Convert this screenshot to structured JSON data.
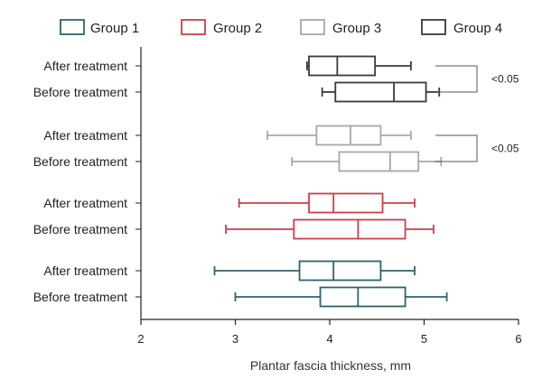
{
  "chart_data": {
    "type": "boxplot",
    "orientation": "horizontal",
    "xlabel": "Plantar fascia thickness, mm",
    "xlim": [
      2,
      6
    ],
    "xticks": [
      2,
      3,
      4,
      5,
      6
    ],
    "legend_position": "top",
    "grid": false,
    "legend": [
      {
        "name": "Group 1",
        "color": "#2e6468"
      },
      {
        "name": "Group 2",
        "color": "#d23c48"
      },
      {
        "name": "Group 3",
        "color": "#a8a8a8"
      },
      {
        "name": "Group 4",
        "color": "#3a3a3a"
      }
    ],
    "rows": [
      {
        "label": "After treatment",
        "group": "Group 4",
        "color": "#3a3a3a",
        "min": 3.76,
        "q1": 3.78,
        "median": 4.08,
        "q3": 4.48,
        "max": 4.86
      },
      {
        "label": "Before treatment",
        "group": "Group 4",
        "color": "#3a3a3a",
        "min": 3.92,
        "q1": 4.06,
        "median": 4.68,
        "q3": 5.02,
        "max": 5.16
      },
      {
        "label": "After treatment",
        "group": "Group 3",
        "color": "#a8a8a8",
        "min": 3.34,
        "q1": 3.86,
        "median": 4.22,
        "q3": 4.54,
        "max": 4.86
      },
      {
        "label": "Before treatment",
        "group": "Group 3",
        "color": "#a8a8a8",
        "min": 3.6,
        "q1": 4.1,
        "median": 4.64,
        "q3": 4.94,
        "max": 5.18
      },
      {
        "label": "After treatment",
        "group": "Group 2",
        "color": "#d23c48",
        "min": 3.04,
        "q1": 3.78,
        "median": 4.04,
        "q3": 4.56,
        "max": 4.9
      },
      {
        "label": "Before treatment",
        "group": "Group 2",
        "color": "#d23c48",
        "min": 2.9,
        "q1": 3.62,
        "median": 4.3,
        "q3": 4.8,
        "max": 5.1
      },
      {
        "label": "After treatment",
        "group": "Group 1",
        "color": "#2e6468",
        "min": 2.78,
        "q1": 3.68,
        "median": 4.04,
        "q3": 4.54,
        "max": 4.9
      },
      {
        "label": "Before treatment",
        "group": "Group 1",
        "color": "#2e6468",
        "min": 3.0,
        "q1": 3.9,
        "median": 4.3,
        "q3": 4.8,
        "max": 5.24
      }
    ],
    "annotations": [
      {
        "text": "<0.05",
        "rows": [
          0,
          1
        ]
      },
      {
        "text": "<0.05",
        "rows": [
          2,
          3
        ]
      }
    ]
  }
}
